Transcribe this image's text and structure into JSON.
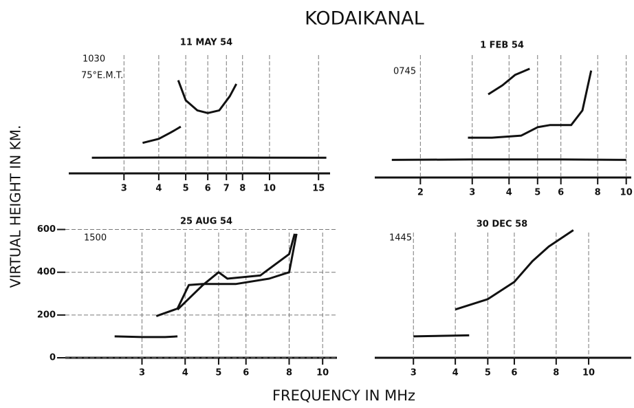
{
  "title": "KODAIKANAL",
  "x_label": "FREQUENCY IN MHz",
  "y_label": "VIRTUAL HEIGHT IN KM.",
  "chart_data": [
    {
      "type": "line",
      "title": "11 MAY 54",
      "annotations": [
        "1030",
        "75°E.M.T."
      ],
      "log_x": true,
      "grid": true,
      "xlim": [
        1.9,
        16.5
      ],
      "xticks": [
        3,
        4,
        5,
        6,
        7,
        8,
        10,
        15
      ],
      "ylim": [
        0,
        650
      ],
      "series": [
        {
          "color": "#111",
          "x": [
            2.3,
            4,
            8,
            16
          ],
          "values": [
            77,
            78,
            78,
            77
          ]
        },
        {
          "color": "#111",
          "x": [
            3.5,
            4.0,
            4.4,
            4.6,
            4.8
          ],
          "values": [
            150,
            170,
            200,
            215,
            230
          ]
        },
        {
          "color": "#111",
          "x": [
            4.7,
            5.0,
            5.5,
            6.0,
            6.6,
            7.2,
            7.6
          ],
          "values": [
            458,
            360,
            310,
            297,
            310,
            380,
            440
          ]
        }
      ]
    },
    {
      "type": "line",
      "title": "1 FEB 54",
      "annotations": [
        "0745"
      ],
      "log_x": true,
      "grid": true,
      "xlim": [
        1.4,
        10.4
      ],
      "xticks": [
        2,
        3,
        4,
        5,
        6,
        8,
        10
      ],
      "ylim": [
        0,
        650
      ],
      "series": [
        {
          "color": "#111",
          "x": [
            1.6,
            3,
            6,
            10
          ],
          "values": [
            84,
            86,
            86,
            84
          ]
        },
        {
          "color": "#111",
          "x": [
            2.9,
            3.5,
            4.4,
            5.0,
            5.5,
            6.5,
            7.1,
            7.6
          ],
          "values": [
            190,
            190,
            200,
            240,
            250,
            250,
            320,
            510
          ]
        },
        {
          "color": "#111",
          "x": [
            3.4,
            3.8,
            4.2,
            4.7
          ],
          "values": [
            397,
            440,
            490,
            519
          ]
        }
      ]
    },
    {
      "type": "line",
      "title": "25 AUG 54",
      "annotations": [
        "1500"
      ],
      "log_x": true,
      "grid": true,
      "xlim": [
        1.8,
        11
      ],
      "xticks": [
        3,
        4,
        5,
        6,
        8,
        10
      ],
      "ylim": [
        0,
        650
      ],
      "yticks": [
        0,
        200,
        400,
        600
      ],
      "series": [
        {
          "color": "#111",
          "x": [
            2.5,
            3.0,
            3.5,
            3.8
          ],
          "values": [
            100,
            97,
            97,
            100
          ]
        },
        {
          "color": "#111",
          "x": [
            3.3,
            3.8,
            4.1,
            4.5,
            5.6,
            7.0,
            8.0,
            8.4
          ],
          "values": [
            195,
            230,
            340,
            345,
            345,
            370,
            400,
            580
          ]
        },
        {
          "color": "#111",
          "x": [
            3.8,
            4.5,
            5.0,
            5.3,
            6.6,
            8.0,
            8.3
          ],
          "values": [
            225,
            340,
            400,
            370,
            385,
            485,
            580
          ]
        }
      ]
    },
    {
      "type": "line",
      "title": "30 DEC 58",
      "annotations": [
        "1445"
      ],
      "log_x": true,
      "grid": true,
      "xlim": [
        2.3,
        13.4
      ],
      "xticks": [
        3,
        4,
        5,
        6,
        8,
        10
      ],
      "ylim": [
        0,
        650
      ],
      "series": [
        {
          "color": "#111",
          "x": [
            3.0,
            4.4
          ],
          "values": [
            100,
            105
          ]
        },
        {
          "color": "#111",
          "x": [
            4.0,
            5.0,
            6.0,
            6.8,
            7.6,
            9.0
          ],
          "values": [
            226,
            274,
            355,
            452,
            520,
            597
          ]
        }
      ]
    }
  ]
}
